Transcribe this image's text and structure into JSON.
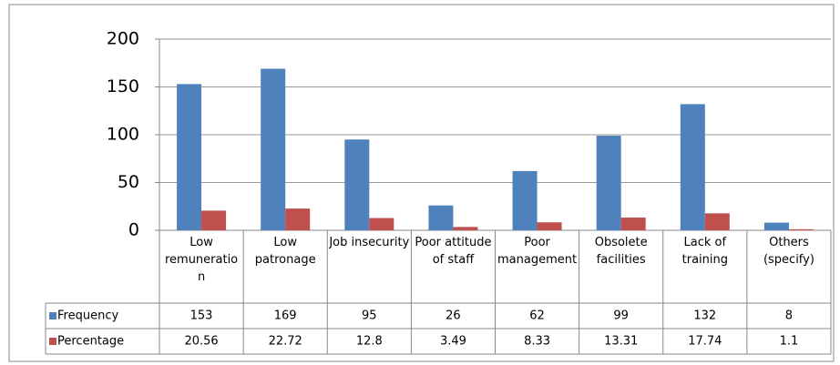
{
  "chart_data": {
    "type": "bar",
    "categories": [
      "Low remuneration",
      "Low patronage",
      "Job insecurity",
      "Poor attitude of staff",
      "Poor management",
      "Obsolete facilities",
      "Lack of training",
      "Others (specify)"
    ],
    "series": [
      {
        "name": "Frequency",
        "color": "#4f81bd",
        "values": [
          153,
          169,
          95,
          26,
          62,
          99,
          132,
          8
        ]
      },
      {
        "name": "Percentage",
        "color": "#c0504d",
        "values": [
          20.56,
          22.72,
          12.8,
          3.49,
          8.33,
          13.31,
          17.74,
          1.1
        ]
      }
    ],
    "ylim": [
      0,
      200
    ],
    "yticks": [
      0,
      50,
      100,
      150,
      200
    ],
    "grid": true,
    "data_table": true
  }
}
